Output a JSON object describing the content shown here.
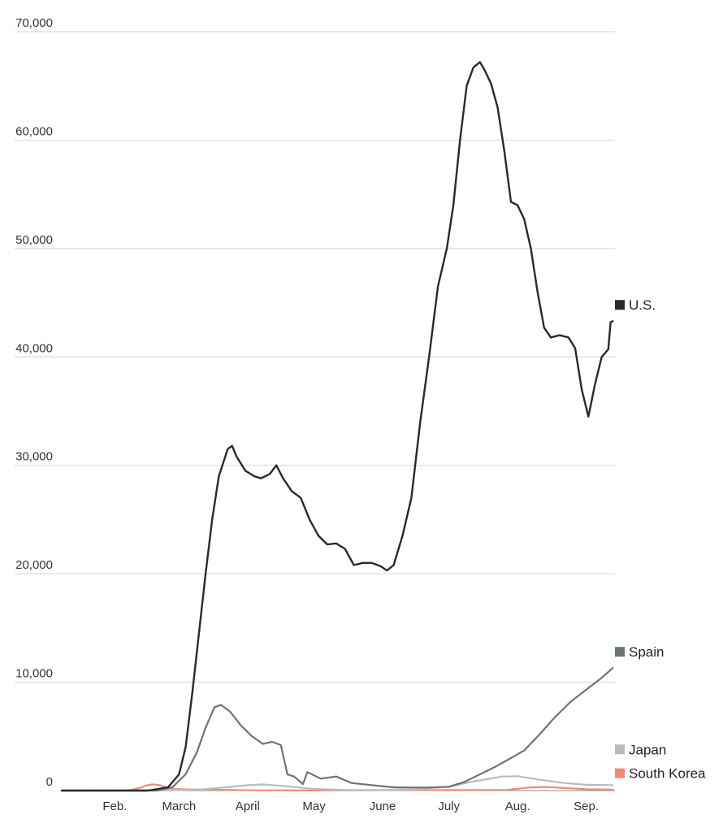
{
  "chart_data": {
    "type": "line",
    "ylim": [
      0,
      70000
    ],
    "yticks": [
      {
        "value": 0,
        "label": "0"
      },
      {
        "value": 10000,
        "label": "10,000"
      },
      {
        "value": 20000,
        "label": "20,000"
      },
      {
        "value": 30000,
        "label": "30,000"
      },
      {
        "value": 40000,
        "label": "40,000"
      },
      {
        "value": 50000,
        "label": "50,000"
      },
      {
        "value": 60000,
        "label": "60,000"
      },
      {
        "value": 70000,
        "label": "70,000"
      }
    ],
    "xlim": [
      "2020-01-22",
      "2020-09-28"
    ],
    "xticks": [
      {
        "date": "2020-02-15",
        "label": "Feb."
      },
      {
        "date": "2020-03-15",
        "label": "March"
      },
      {
        "date": "2020-04-15",
        "label": "April"
      },
      {
        "date": "2020-05-15",
        "label": "May"
      },
      {
        "date": "2020-06-15",
        "label": "June"
      },
      {
        "date": "2020-07-15",
        "label": "July"
      },
      {
        "date": "2020-08-15",
        "label": "Aug."
      },
      {
        "date": "2020-09-15",
        "label": "Sep."
      }
    ],
    "grid": true,
    "legend": "right",
    "series": [
      {
        "name": "South Korea",
        "color": "#f08a78",
        "points": [
          [
            "2020-01-22",
            0
          ],
          [
            "2020-02-18",
            0
          ],
          [
            "2020-02-22",
            50
          ],
          [
            "2020-02-26",
            220
          ],
          [
            "2020-02-29",
            450
          ],
          [
            "2020-03-03",
            580
          ],
          [
            "2020-03-06",
            500
          ],
          [
            "2020-03-09",
            320
          ],
          [
            "2020-03-13",
            140
          ],
          [
            "2020-03-20",
            100
          ],
          [
            "2020-04-05",
            60
          ],
          [
            "2020-04-20",
            20
          ],
          [
            "2020-05-10",
            10
          ],
          [
            "2020-06-10",
            40
          ],
          [
            "2020-07-15",
            45
          ],
          [
            "2020-08-10",
            60
          ],
          [
            "2020-08-20",
            280
          ],
          [
            "2020-08-28",
            330
          ],
          [
            "2020-09-05",
            230
          ],
          [
            "2020-09-15",
            130
          ],
          [
            "2020-09-27",
            80
          ]
        ]
      },
      {
        "name": "Japan",
        "color": "#b8bcbf",
        "points": [
          [
            "2020-01-22",
            0
          ],
          [
            "2020-03-10",
            30
          ],
          [
            "2020-03-25",
            100
          ],
          [
            "2020-04-05",
            300
          ],
          [
            "2020-04-15",
            500
          ],
          [
            "2020-04-22",
            560
          ],
          [
            "2020-05-01",
            430
          ],
          [
            "2020-05-15",
            150
          ],
          [
            "2020-06-01",
            40
          ],
          [
            "2020-06-15",
            40
          ],
          [
            "2020-07-01",
            150
          ],
          [
            "2020-07-15",
            350
          ],
          [
            "2020-07-25",
            800
          ],
          [
            "2020-08-01",
            1050
          ],
          [
            "2020-08-08",
            1300
          ],
          [
            "2020-08-15",
            1330
          ],
          [
            "2020-08-25",
            1000
          ],
          [
            "2020-09-05",
            700
          ],
          [
            "2020-09-15",
            530
          ],
          [
            "2020-09-27",
            500
          ]
        ]
      },
      {
        "name": "Spain",
        "color": "#6d7478",
        "points": [
          [
            "2020-01-22",
            0
          ],
          [
            "2020-03-05",
            0
          ],
          [
            "2020-03-12",
            300
          ],
          [
            "2020-03-18",
            1500
          ],
          [
            "2020-03-23",
            3500
          ],
          [
            "2020-03-27",
            5800
          ],
          [
            "2020-03-31",
            7700
          ],
          [
            "2020-04-03",
            7900
          ],
          [
            "2020-04-07",
            7300
          ],
          [
            "2020-04-12",
            6000
          ],
          [
            "2020-04-17",
            5000
          ],
          [
            "2020-04-22",
            4300
          ],
          [
            "2020-04-26",
            4500
          ],
          [
            "2020-04-30",
            4200
          ],
          [
            "2020-05-03",
            1500
          ],
          [
            "2020-05-06",
            1300
          ],
          [
            "2020-05-10",
            600
          ],
          [
            "2020-05-12",
            1700
          ],
          [
            "2020-05-18",
            1100
          ],
          [
            "2020-05-25",
            1300
          ],
          [
            "2020-06-01",
            700
          ],
          [
            "2020-06-10",
            500
          ],
          [
            "2020-06-20",
            300
          ],
          [
            "2020-07-05",
            280
          ],
          [
            "2020-07-15",
            350
          ],
          [
            "2020-07-22",
            800
          ],
          [
            "2020-07-28",
            1400
          ],
          [
            "2020-08-05",
            2200
          ],
          [
            "2020-08-12",
            3000
          ],
          [
            "2020-08-18",
            3700
          ],
          [
            "2020-08-25",
            5200
          ],
          [
            "2020-09-01",
            6800
          ],
          [
            "2020-09-08",
            8200
          ],
          [
            "2020-09-15",
            9300
          ],
          [
            "2020-09-22",
            10400
          ],
          [
            "2020-09-27",
            11300
          ]
        ]
      },
      {
        "name": "U.S.",
        "color": "#262b30",
        "points": [
          [
            "2020-01-22",
            0
          ],
          [
            "2020-03-01",
            0
          ],
          [
            "2020-03-10",
            300
          ],
          [
            "2020-03-15",
            1500
          ],
          [
            "2020-03-18",
            4000
          ],
          [
            "2020-03-21",
            9000
          ],
          [
            "2020-03-24",
            14500
          ],
          [
            "2020-03-27",
            20000
          ],
          [
            "2020-03-30",
            25000
          ],
          [
            "2020-04-02",
            29000
          ],
          [
            "2020-04-06",
            31500
          ],
          [
            "2020-04-08",
            31800
          ],
          [
            "2020-04-10",
            30800
          ],
          [
            "2020-04-14",
            29500
          ],
          [
            "2020-04-18",
            29000
          ],
          [
            "2020-04-21",
            28800
          ],
          [
            "2020-04-25",
            29200
          ],
          [
            "2020-04-28",
            30000
          ],
          [
            "2020-05-01",
            28800
          ],
          [
            "2020-05-05",
            27600
          ],
          [
            "2020-05-09",
            27000
          ],
          [
            "2020-05-13",
            25000
          ],
          [
            "2020-05-17",
            23500
          ],
          [
            "2020-05-21",
            22700
          ],
          [
            "2020-05-25",
            22800
          ],
          [
            "2020-05-29",
            22300
          ],
          [
            "2020-06-02",
            20800
          ],
          [
            "2020-06-06",
            21000
          ],
          [
            "2020-06-10",
            21000
          ],
          [
            "2020-06-14",
            20700
          ],
          [
            "2020-06-17",
            20300
          ],
          [
            "2020-06-20",
            20800
          ],
          [
            "2020-06-24",
            23500
          ],
          [
            "2020-06-28",
            27000
          ],
          [
            "2020-07-02",
            34000
          ],
          [
            "2020-07-06",
            40000
          ],
          [
            "2020-07-10",
            46500
          ],
          [
            "2020-07-14",
            50000
          ],
          [
            "2020-07-17",
            54000
          ],
          [
            "2020-07-20",
            60000
          ],
          [
            "2020-07-23",
            65000
          ],
          [
            "2020-07-26",
            66700
          ],
          [
            "2020-07-29",
            67200
          ],
          [
            "2020-07-31",
            66500
          ],
          [
            "2020-08-03",
            65200
          ],
          [
            "2020-08-06",
            63000
          ],
          [
            "2020-08-09",
            59000
          ],
          [
            "2020-08-12",
            54300
          ],
          [
            "2020-08-15",
            54000
          ],
          [
            "2020-08-18",
            52700
          ],
          [
            "2020-08-21",
            50000
          ],
          [
            "2020-08-24",
            46000
          ],
          [
            "2020-08-27",
            42700
          ],
          [
            "2020-08-30",
            41800
          ],
          [
            "2020-09-03",
            42000
          ],
          [
            "2020-09-07",
            41800
          ],
          [
            "2020-09-10",
            40800
          ],
          [
            "2020-09-13",
            37000
          ],
          [
            "2020-09-16",
            34500
          ],
          [
            "2020-09-19",
            37500
          ],
          [
            "2020-09-22",
            40000
          ],
          [
            "2020-09-25",
            40700
          ],
          [
            "2020-09-26",
            43200
          ],
          [
            "2020-09-27",
            43300
          ]
        ]
      }
    ]
  }
}
